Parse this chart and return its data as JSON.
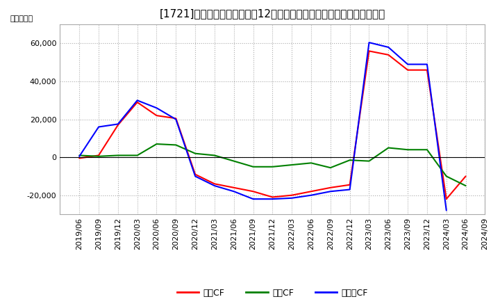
{
  "title": "[1721]　キャッシュフローの12か月移動合計の対前年同期増減額の推移",
  "ylabel": "（百万円）",
  "ylim": [
    -30000,
    70000
  ],
  "yticks": [
    -20000,
    0,
    20000,
    40000,
    60000
  ],
  "legend_labels": [
    "営業CF",
    "投資CF",
    "フリーCF"
  ],
  "line_colors": [
    "#ff0000",
    "#008000",
    "#0000ff"
  ],
  "dates": [
    "2019/06",
    "2019/09",
    "2019/12",
    "2020/03",
    "2020/06",
    "2020/09",
    "2020/12",
    "2021/03",
    "2021/06",
    "2021/09",
    "2021/12",
    "2022/03",
    "2022/06",
    "2022/09",
    "2022/12",
    "2023/03",
    "2023/06",
    "2023/09",
    "2023/12",
    "2024/03",
    "2024/06",
    "2024/09"
  ],
  "eigyo_cf": [
    -500,
    1000,
    17000,
    29000,
    22000,
    20500,
    -9000,
    -14000,
    -16000,
    -18000,
    -21000,
    -20000,
    -18000,
    -16000,
    -14500,
    56000,
    54000,
    46000,
    46000,
    -22000,
    -10000,
    null
  ],
  "toshi_cf": [
    1000,
    500,
    1000,
    1000,
    7000,
    6500,
    2000,
    1000,
    -2000,
    -5000,
    -5000,
    -4000,
    -3000,
    -5500,
    -1500,
    -2000,
    5000,
    4000,
    4000,
    -10000,
    -15000,
    null
  ],
  "free_cf": [
    500,
    16000,
    17500,
    30000,
    26000,
    20000,
    -10000,
    -15000,
    -18000,
    -22000,
    -22000,
    -21500,
    -20000,
    -18000,
    -17000,
    60500,
    58000,
    49000,
    49000,
    -28000,
    null,
    null
  ],
  "bg_color": "#ffffff",
  "grid_color": "#aaaaaa",
  "title_fontsize": 11,
  "axis_fontsize": 8
}
